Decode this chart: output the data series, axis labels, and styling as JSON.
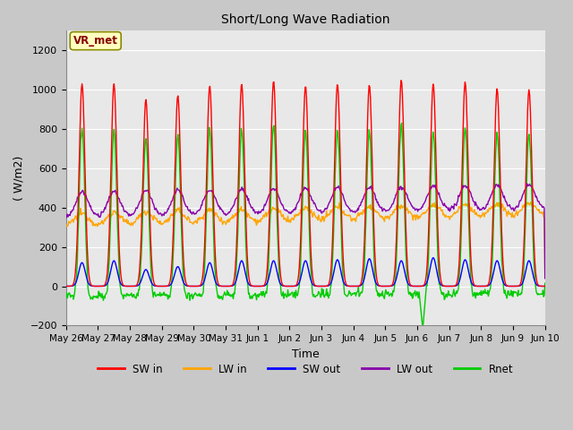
{
  "title": "Short/Long Wave Radiation",
  "xlabel": "Time",
  "ylabel": "( W/m2)",
  "ylim": [
    -200,
    1300
  ],
  "yticks": [
    -200,
    0,
    200,
    400,
    600,
    800,
    1000,
    1200
  ],
  "x_labels": [
    "May 26",
    "May 27",
    "May 28",
    "May 29",
    "May 30",
    "May 31",
    "Jun 1",
    "Jun 2",
    "Jun 3",
    "Jun 4",
    "Jun 5",
    "Jun 6",
    "Jun 7",
    "Jun 8",
    "Jun 9",
    "Jun 10"
  ],
  "legend_labels": [
    "SW in",
    "LW in",
    "SW out",
    "LW out",
    "Rnet"
  ],
  "colors": {
    "SW in": "#ff0000",
    "LW in": "#ffa500",
    "SW out": "#0000ff",
    "LW out": "#8800aa",
    "Rnet": "#00cc00"
  },
  "annotation_text": "VR_met",
  "annotation_text_color": "#880000",
  "annotation_bg": "#ffffc0",
  "annotation_edge": "#888800",
  "fig_bg_color": "#c8c8c8",
  "plot_bg_color": "#e8e8e8",
  "grid_color": "#ffffff",
  "n_days": 15
}
